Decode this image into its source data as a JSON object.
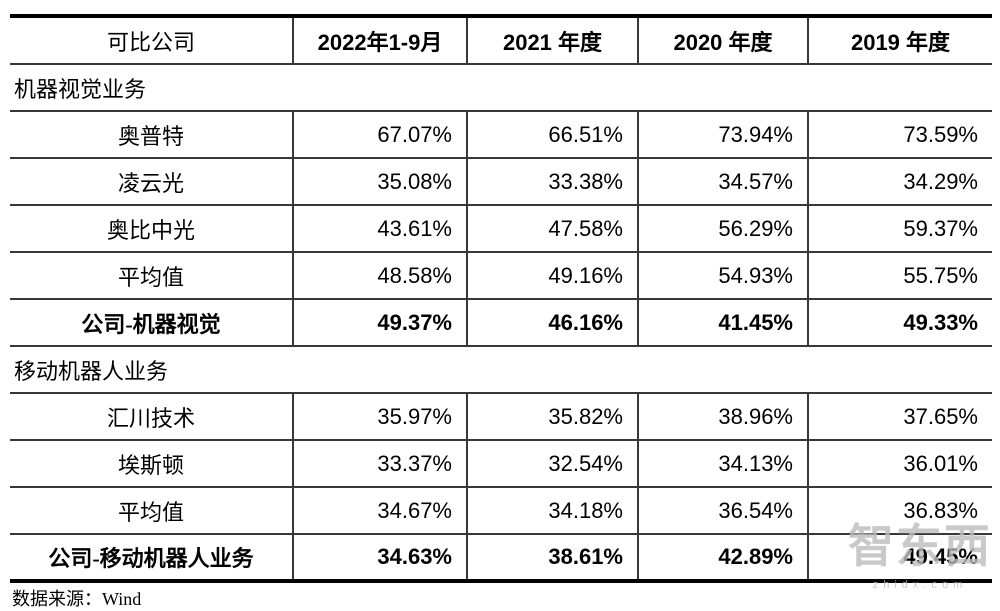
{
  "table": {
    "columns": [
      "可比公司",
      "2022年1-9月",
      "2021 年度",
      "2020 年度",
      "2019 年度"
    ],
    "sections": [
      {
        "title": "机器视觉业务",
        "rows": [
          {
            "name": "奥普特",
            "values": [
              "67.07%",
              "66.51%",
              "73.94%",
              "73.59%"
            ],
            "bold": false
          },
          {
            "name": "凌云光",
            "values": [
              "35.08%",
              "33.38%",
              "34.57%",
              "34.29%"
            ],
            "bold": false
          },
          {
            "name": "奥比中光",
            "values": [
              "43.61%",
              "47.58%",
              "56.29%",
              "59.37%"
            ],
            "bold": false
          },
          {
            "name": "平均值",
            "values": [
              "48.58%",
              "49.16%",
              "54.93%",
              "55.75%"
            ],
            "bold": false
          },
          {
            "name": "公司-机器视觉",
            "values": [
              "49.37%",
              "46.16%",
              "41.45%",
              "49.33%"
            ],
            "bold": true
          }
        ]
      },
      {
        "title": "移动机器人业务",
        "rows": [
          {
            "name": "汇川技术",
            "values": [
              "35.97%",
              "35.82%",
              "38.96%",
              "37.65%"
            ],
            "bold": false
          },
          {
            "name": "埃斯顿",
            "values": [
              "33.37%",
              "32.54%",
              "34.13%",
              "36.01%"
            ],
            "bold": false
          },
          {
            "name": "平均值",
            "values": [
              "34.67%",
              "34.18%",
              "36.54%",
              "36.83%"
            ],
            "bold": false
          },
          {
            "name": "公司-移动机器人业务",
            "values": [
              "34.63%",
              "38.61%",
              "42.89%",
              "49.45%"
            ],
            "bold": true
          }
        ]
      }
    ]
  },
  "footer": {
    "source_note": "数据来源：Wind"
  },
  "watermark": {
    "logo": "智东西",
    "url": "zhidx.com"
  },
  "colors": {
    "thick_border": "#000000",
    "thin_border": "#383838",
    "watermark_gray": "#bcbcbc"
  }
}
